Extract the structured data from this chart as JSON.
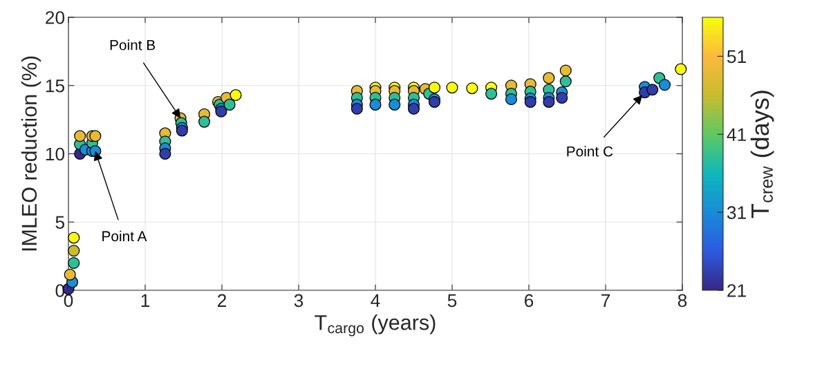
{
  "chart_data": {
    "type": "scatter",
    "xlabel": "T$_{cargo}$ (years)",
    "ylabel": "IMLEO reduction (%)",
    "clabel": "T$_{crew}$ (days)",
    "xlim": [
      0,
      8
    ],
    "xticks": [
      0,
      1,
      2,
      3,
      4,
      5,
      6,
      7,
      8
    ],
    "ylim": [
      0,
      20
    ],
    "yticks": [
      0,
      5,
      10,
      15,
      20
    ],
    "clim": [
      21,
      56
    ],
    "cticks": [
      21,
      31,
      41,
      51
    ],
    "grid": true,
    "marker": "circle",
    "x": [
      0,
      0.05,
      0.02,
      0.07,
      0.07,
      0.07,
      0.15,
      0.15,
      0.15,
      0.22,
      0.31,
      0.31,
      0.31,
      0.35,
      0.35,
      1.26,
      1.26,
      1.26,
      1.26,
      1.46,
      1.47,
      1.48,
      1.48,
      1.77,
      1.77,
      1.95,
      1.97,
      1.99,
      1.99,
      2.06,
      2.1,
      2.18,
      3.76,
      3.76,
      3.76,
      3.76,
      4.0,
      4.0,
      4.0,
      4.0,
      4.25,
      4.25,
      4.25,
      4.25,
      4.5,
      4.5,
      4.5,
      4.5,
      4.5,
      4.65,
      4.7,
      4.77,
      4.77,
      4.77,
      5.0,
      5.26,
      5.51,
      5.51,
      5.77,
      5.77,
      5.77,
      6.02,
      6.02,
      6.02,
      6.02,
      6.26,
      6.26,
      6.26,
      6.26,
      6.43,
      6.43,
      6.48,
      6.48,
      7.51,
      7.51,
      7.61,
      7.7,
      7.77,
      7.98
    ],
    "values": [
      0.1,
      0.6,
      1.15,
      2.0,
      2.9,
      3.85,
      10.0,
      10.7,
      11.3,
      10.3,
      10.2,
      10.8,
      11.3,
      11.3,
      10.2,
      11.5,
      10.9,
      10.4,
      10.0,
      12.6,
      12.25,
      11.9,
      11.7,
      12.9,
      12.35,
      13.8,
      13.6,
      13.3,
      13.1,
      14.1,
      13.6,
      14.3,
      14.6,
      14.1,
      13.6,
      13.3,
      14.85,
      14.6,
      14.1,
      13.6,
      14.85,
      14.6,
      14.1,
      13.6,
      14.85,
      14.6,
      14.1,
      13.6,
      13.3,
      14.75,
      14.4,
      14.85,
      14.0,
      13.8,
      14.85,
      14.8,
      14.85,
      14.4,
      15.0,
      14.4,
      14.0,
      15.1,
      14.55,
      14.05,
      13.8,
      15.55,
      14.7,
      14.1,
      13.8,
      14.5,
      14.1,
      16.1,
      15.3,
      14.9,
      14.5,
      14.7,
      15.55,
      15.05,
      16.2
    ],
    "cvalues": [
      21,
      31,
      49,
      38,
      46,
      56,
      21,
      38,
      49,
      31,
      31,
      38,
      49,
      49,
      31,
      49,
      38,
      31,
      23,
      49,
      38,
      31,
      23,
      49,
      38,
      49,
      38,
      31,
      23,
      49,
      38,
      56,
      49,
      38,
      31,
      23,
      56,
      49,
      38,
      31,
      56,
      49,
      38,
      31,
      56,
      49,
      38,
      31,
      23,
      49,
      38,
      56,
      31,
      23,
      56,
      56,
      56,
      38,
      49,
      38,
      31,
      49,
      38,
      31,
      23,
      49,
      38,
      31,
      23,
      31,
      23,
      49,
      38,
      31,
      23,
      23,
      38,
      31,
      56
    ],
    "annotations": [
      {
        "text": "Point A",
        "x": 0.35,
        "y": 10.2
      },
      {
        "text": "Point B",
        "x": 1.46,
        "y": 12.6
      },
      {
        "text": "Point C",
        "x": 7.48,
        "y": 14.3
      }
    ]
  }
}
